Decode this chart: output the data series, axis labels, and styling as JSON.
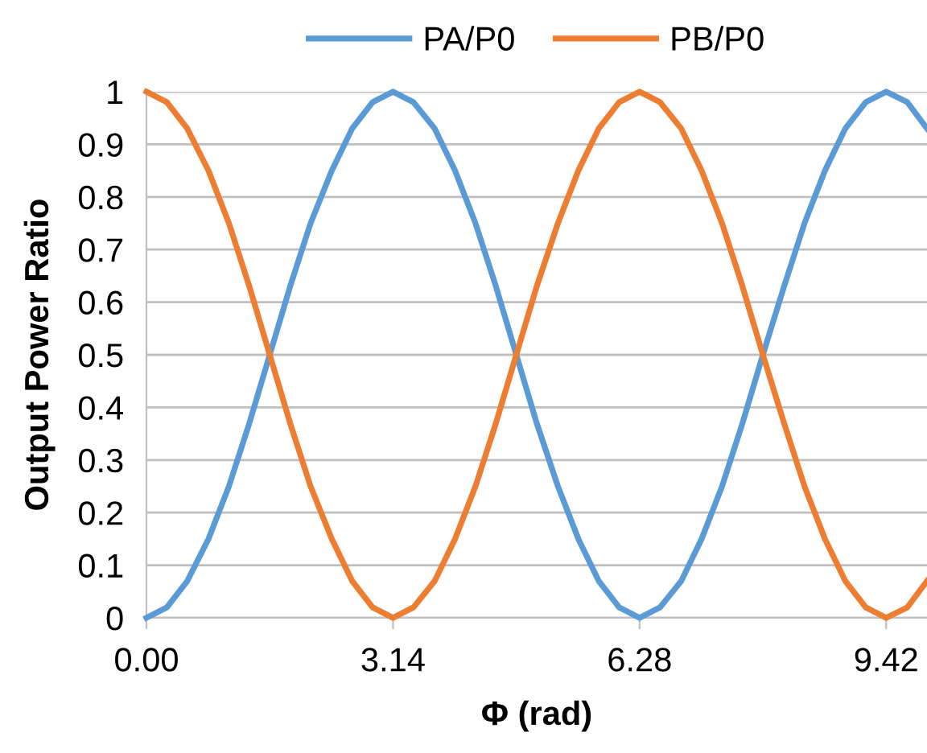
{
  "chart_data": {
    "type": "line",
    "xlabel": "Φ (rad)",
    "ylabel": "Output Power Ratio",
    "x": [
      0,
      0.26,
      0.52,
      0.79,
      1.05,
      1.31,
      1.57,
      1.83,
      2.09,
      2.36,
      2.62,
      2.88,
      3.14,
      3.4,
      3.67,
      3.93,
      4.19,
      4.45,
      4.71,
      4.97,
      5.24,
      5.5,
      5.76,
      6.02,
      6.28,
      6.54,
      6.81,
      7.07,
      7.33,
      7.59,
      7.85,
      8.12,
      8.38,
      8.64,
      8.9,
      9.16,
      9.42,
      9.69,
      9.94
    ],
    "series": [
      {
        "name": "PA/P0",
        "color": "#5b9bd5",
        "values": [
          0,
          0.02,
          0.07,
          0.15,
          0.25,
          0.37,
          0.5,
          0.63,
          0.75,
          0.85,
          0.93,
          0.98,
          1,
          0.98,
          0.93,
          0.85,
          0.75,
          0.63,
          0.5,
          0.37,
          0.25,
          0.15,
          0.07,
          0.02,
          0,
          0.02,
          0.07,
          0.15,
          0.25,
          0.37,
          0.5,
          0.63,
          0.75,
          0.85,
          0.93,
          0.98,
          1,
          0.98,
          0.93
        ]
      },
      {
        "name": "PB/P0",
        "color": "#ed7d31",
        "values": [
          1,
          0.98,
          0.93,
          0.85,
          0.75,
          0.63,
          0.5,
          0.37,
          0.25,
          0.15,
          0.07,
          0.02,
          0,
          0.02,
          0.07,
          0.15,
          0.25,
          0.37,
          0.5,
          0.63,
          0.75,
          0.85,
          0.93,
          0.98,
          1,
          0.98,
          0.93,
          0.85,
          0.75,
          0.63,
          0.5,
          0.37,
          0.25,
          0.15,
          0.07,
          0.02,
          0,
          0.02,
          0.07
        ]
      }
    ],
    "xlim": [
      0,
      9.94
    ],
    "ylim": [
      0,
      1
    ],
    "xticks": [
      {
        "value": 0,
        "label": "0.00"
      },
      {
        "value": 3.14,
        "label": "3.14"
      },
      {
        "value": 6.28,
        "label": "6.28"
      },
      {
        "value": 9.42,
        "label": "9.42"
      }
    ],
    "yticks": [
      0,
      0.1,
      0.2,
      0.3,
      0.4,
      0.5,
      0.6,
      0.7,
      0.8,
      0.9,
      1
    ],
    "grid": "y",
    "legend": "top",
    "marker": "none",
    "line_style": "solid"
  }
}
